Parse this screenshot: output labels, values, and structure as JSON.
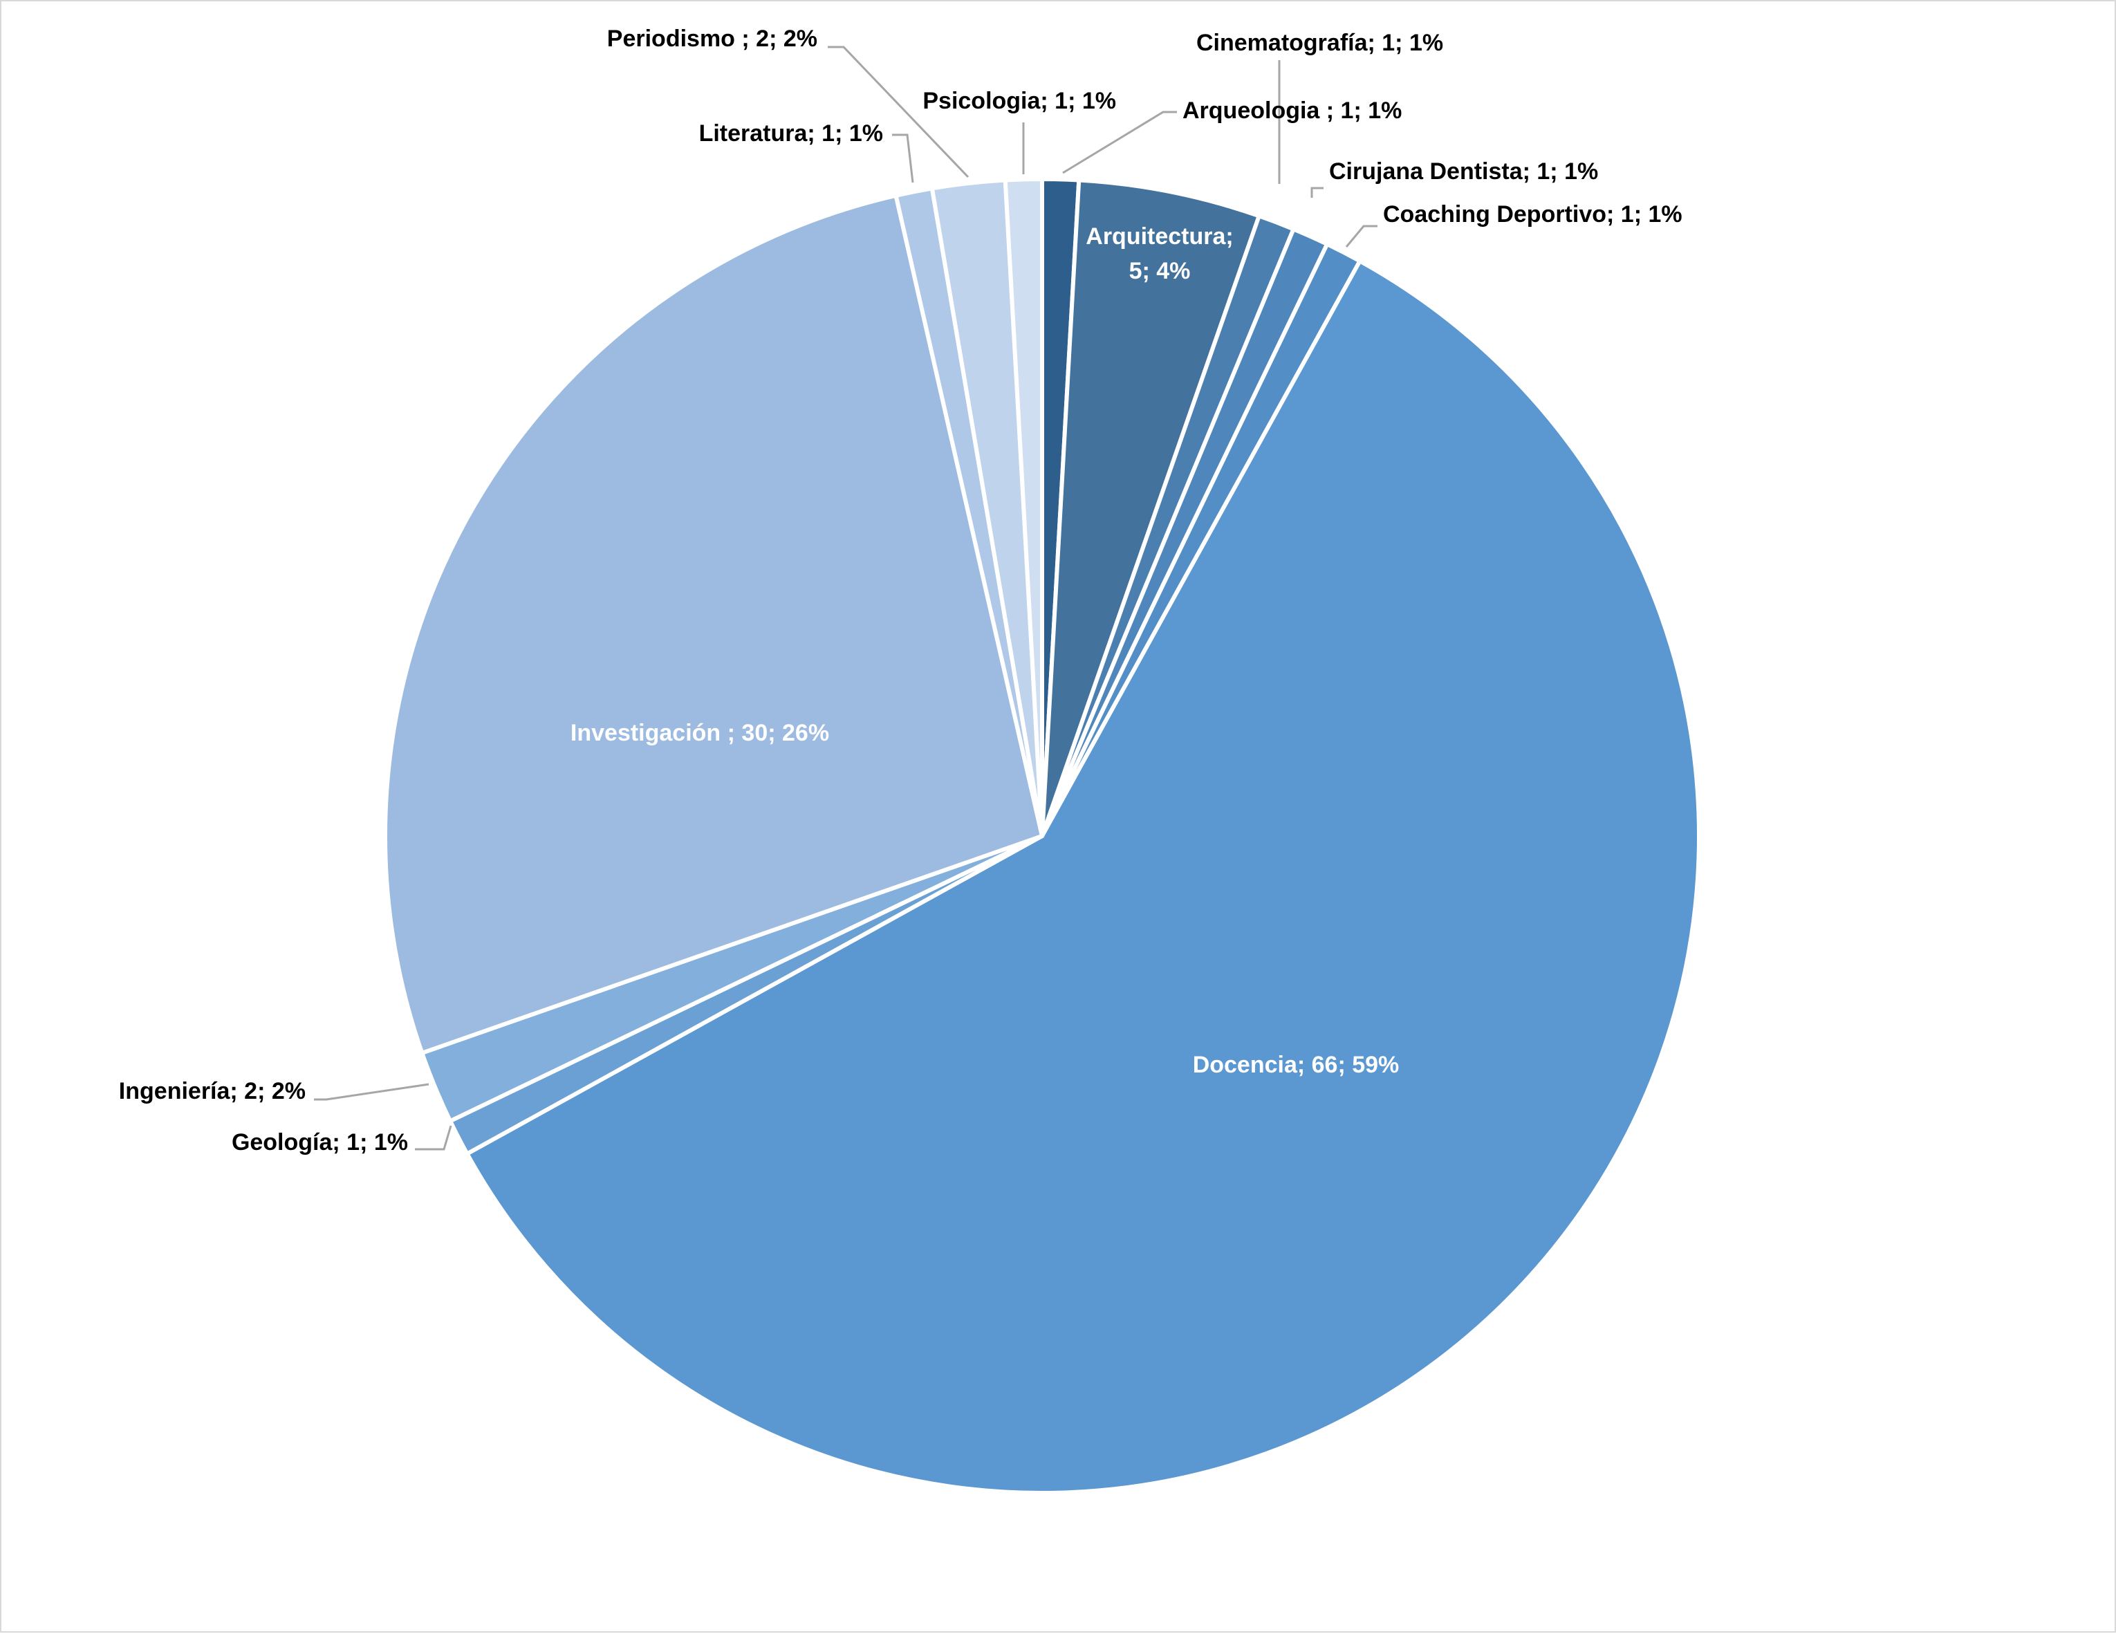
{
  "chart_data": {
    "type": "pie",
    "title": "",
    "start_angle_deg": 0,
    "direction": "clockwise",
    "slices": [
      {
        "name": "Arqueologia ",
        "value": 1,
        "percent": "1%",
        "color": "#2e5f8c",
        "label": "Arqueologia ; 1; 1%"
      },
      {
        "name": "Arquitectura",
        "value": 5,
        "percent": "4%",
        "color": "#43729c",
        "label": "Arquitectura; 5; 4%",
        "label_lines": [
          "Arquitectura;",
          "5; 4%"
        ]
      },
      {
        "name": "Cinematografía",
        "value": 1,
        "percent": "1%",
        "color": "#4a7fb0",
        "label": "Cinematografía; 1; 1%"
      },
      {
        "name": "Cirujana Dentista",
        "value": 1,
        "percent": "1%",
        "color": "#4f87bd",
        "label": "Cirujana Dentista; 1; 1%"
      },
      {
        "name": "Coaching Deportivo",
        "value": 1,
        "percent": "1%",
        "color": "#538ec6",
        "label": "Coaching Deportivo; 1; 1%"
      },
      {
        "name": "Docencia",
        "value": 66,
        "percent": "59%",
        "color": "#5b97d0",
        "label": "Docencia; 66; 59%"
      },
      {
        "name": "Geología",
        "value": 1,
        "percent": "1%",
        "color": "#6aa0d4",
        "label": "Geología; 1; 1%"
      },
      {
        "name": "Ingeniería",
        "value": 2,
        "percent": "2%",
        "color": "#82afdb",
        "label": "Ingeniería; 2; 2%"
      },
      {
        "name": "Investigación ",
        "value": 30,
        "percent": "26%",
        "color": "#9dbbe1",
        "label": "Investigación ; 30; 26%"
      },
      {
        "name": "Literatura",
        "value": 1,
        "percent": "1%",
        "color": "#afc8e7",
        "label": "Literatura; 1; 1%"
      },
      {
        "name": "Periodismo ",
        "value": 2,
        "percent": "2%",
        "color": "#c0d3ec",
        "label": "Periodismo ; 2; 2%"
      },
      {
        "name": "Psicologia",
        "value": 1,
        "percent": "1%",
        "color": "#d0def1",
        "label": "Psicologia; 1; 1%"
      }
    ],
    "colors": {
      "separator": "#ffffff",
      "leader_line": "#a6a6a6",
      "outside_text": "#000000",
      "inside_text": "#ffffff",
      "border": "#d9d9d9"
    }
  }
}
